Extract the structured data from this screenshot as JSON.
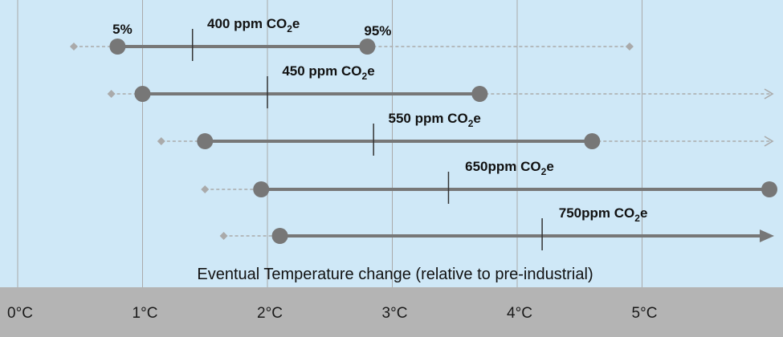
{
  "chart_data": {
    "type": "range",
    "xlabel": "Eventual Temperature change (relative to pre-industrial)",
    "xlim": [
      -0.2,
      5.8
    ],
    "ticks": [
      {
        "value": 0,
        "label": "0°C"
      },
      {
        "value": 1,
        "label": "1°C"
      },
      {
        "value": 2,
        "label": "2°C"
      },
      {
        "value": 3,
        "label": "3°C"
      },
      {
        "value": 4,
        "label": "4°C"
      },
      {
        "value": 5,
        "label": "5°C"
      }
    ],
    "grid": true,
    "colors": {
      "plot_bg": "#cfe8f7",
      "axis_band": "#b4b4b4",
      "range_line": "#777777",
      "tail_line": "#aaaaaa",
      "grid": "#aaaaaa"
    },
    "percentile_labels": {
      "low": "5%",
      "high": "95%"
    },
    "series": [
      {
        "label_main": "400 ppm CO",
        "label_sub": "2",
        "label_end": "e",
        "tail_low": 0.45,
        "p5": 0.8,
        "median": 1.4,
        "p95": 2.8,
        "tail_high": 4.9,
        "tail_high_arrow": false,
        "p95_arrow": false
      },
      {
        "label_main": "450 ppm CO",
        "label_sub": "2",
        "label_end": "e",
        "tail_low": 0.75,
        "p5": 1.0,
        "median": 2.0,
        "p95": 3.7,
        "tail_high": 5.8,
        "tail_high_arrow": true,
        "p95_arrow": false
      },
      {
        "label_main": "550 ppm CO",
        "label_sub": "2",
        "label_end": "e",
        "tail_low": 1.15,
        "p5": 1.5,
        "median": 2.85,
        "p95": 4.6,
        "tail_high": 5.8,
        "tail_high_arrow": true,
        "p95_arrow": false
      },
      {
        "label_main": "650ppm CO",
        "label_sub": "2",
        "label_end": "e",
        "tail_low": 1.5,
        "p5": 1.95,
        "median": 3.45,
        "p95": 5.8,
        "tail_high": null,
        "tail_high_arrow": false,
        "p95_arrow": false
      },
      {
        "label_main": "750ppm CO",
        "label_sub": "2",
        "label_end": "e",
        "tail_low": 1.65,
        "p5": 2.1,
        "median": 4.2,
        "p95": 5.8,
        "tail_high": null,
        "tail_high_arrow": false,
        "p95_arrow": true
      }
    ]
  }
}
